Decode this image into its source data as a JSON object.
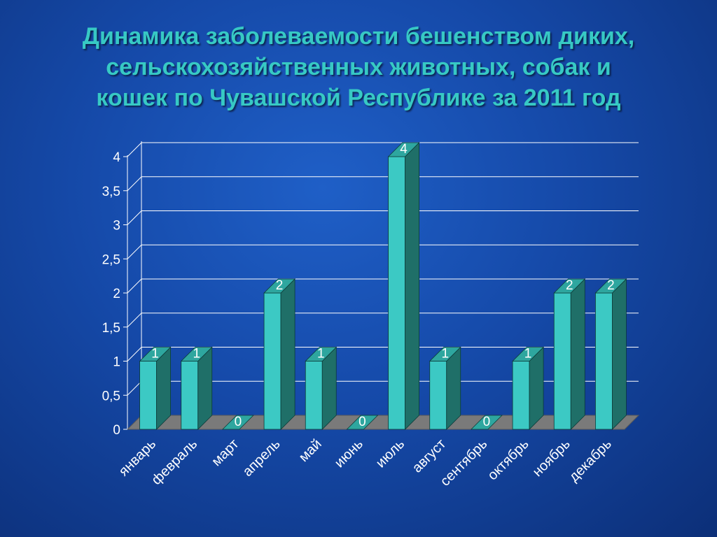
{
  "slide": {
    "title_lines": [
      "Динамика заболеваемости бешенством диких,",
      "сельскохозяйственных животных, собак и",
      "кошек по Чувашской Республике за 2011 год"
    ]
  },
  "colors": {
    "background": "#1549a8",
    "title": "#37c9c4",
    "bar_front": "#3cc9c4",
    "bar_side": "#1f6f68",
    "bar_top": "#2ea69f",
    "floor": "#7a7a7a",
    "grid": "#ffffff",
    "text": "#ffffff"
  },
  "chart_data": {
    "type": "bar",
    "title": "Динамика заболеваемости бешенством диких, сельскохозяйственных животных, собак и кошек по Чувашской Республике за 2011 год",
    "categories": [
      "январь",
      "февраль",
      "март",
      "апрель",
      "май",
      "июнь",
      "июль",
      "август",
      "сентябрь",
      "октябрь",
      "ноябрь",
      "декабрь"
    ],
    "values": [
      1,
      1,
      0,
      2,
      1,
      0,
      4,
      1,
      0,
      1,
      2,
      2
    ],
    "data_labels": [
      "1",
      "1",
      "0",
      "2",
      "1",
      "0",
      "4",
      "1",
      "0",
      "1",
      "2",
      "2"
    ],
    "y_ticks": [
      "0",
      "0,5",
      "1",
      "1,5",
      "2",
      "2,5",
      "3",
      "3,5",
      "4"
    ],
    "y_tick_values": [
      0,
      0.5,
      1,
      1.5,
      2,
      2.5,
      3,
      3.5,
      4
    ],
    "ylim": [
      0,
      4
    ],
    "grid": true,
    "legend": false,
    "style": "3d-column"
  }
}
